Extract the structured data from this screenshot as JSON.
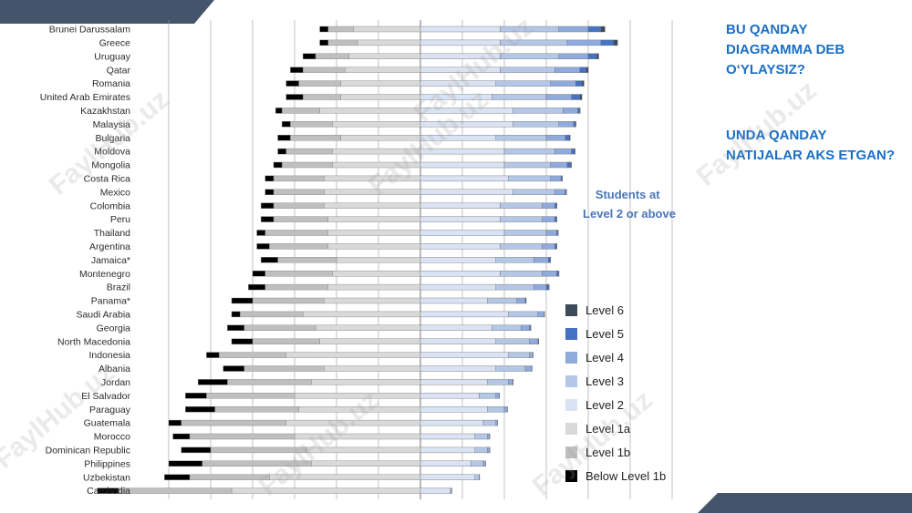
{
  "questions": {
    "q1": "BU QANDAY\nDIAGRAMMA DEB\nO‘YLAYSIZ?",
    "q2": " UNDA QANDAY\nNATIJALAR AKS ETGAN?"
  },
  "watermark": "FaylHub.uz",
  "colors": {
    "level6": "#3d4a5c",
    "level5": "#4472c4",
    "level4": "#8faadc",
    "level3": "#b4c7e7",
    "level2": "#dae3f3",
    "level1a": "#d9d9d9",
    "level1b": "#bfbfbf",
    "below1b": "#000000",
    "deco": "#44546a"
  },
  "chart_data": {
    "type": "bar",
    "orientation": "horizontal",
    "stacked": "diverging",
    "title": "",
    "callout": "Students at\nLevel 2 or above",
    "unit": "percent of students",
    "levels": [
      "Below Level 1b",
      "Level 1b",
      "Level 1a",
      "Level 2",
      "Level 3",
      "Level 4",
      "Level 5",
      "Level 6"
    ],
    "legend_order": [
      "Level 6",
      "Level 5",
      "Level 4",
      "Level 3",
      "Level 2",
      "Level 1a",
      "Level 1b",
      "Below Level 1b"
    ],
    "legend_position": "right",
    "grid": true,
    "xlim": [
      -60,
      80
    ],
    "categories": [
      "Brunei Darussalam",
      "Greece",
      "Uruguay",
      "Qatar",
      "Romania",
      "United Arab Emirates",
      "Kazakhstan",
      "Malaysia",
      "Bulgaria",
      "Moldova",
      "Mongolia",
      "Costa Rica",
      "Mexico",
      "Colombia",
      "Peru",
      "Thailand",
      "Argentina",
      "Jamaica*",
      "Montenegro",
      "Brazil",
      "Panama*",
      "Saudi Arabia",
      "Georgia",
      "North Macedonia",
      "Indonesia",
      "Albania",
      "Jordan",
      "El Salvador",
      "Paraguay",
      "Guatemala",
      "Morocco",
      "Dominican Republic",
      "Philippines",
      "Uzbekistan",
      "Cambodia"
    ],
    "values": [
      [
        2,
        6,
        16,
        19,
        14,
        7,
        3,
        1
      ],
      [
        2,
        7,
        15,
        19,
        16,
        8,
        3,
        1
      ],
      [
        3,
        8,
        17,
        19,
        14,
        7,
        2,
        0.5
      ],
      [
        3,
        10,
        18,
        19,
        13,
        6,
        1.5,
        0.5
      ],
      [
        3,
        10,
        19,
        18,
        13,
        6,
        1.5,
        0.5
      ],
      [
        4,
        9,
        19,
        17,
        13,
        6,
        2,
        0.5
      ],
      [
        1.5,
        9,
        24,
        22,
        12,
        3.5,
        0.5,
        0.1
      ],
      [
        2,
        10,
        21,
        22,
        11,
        3.5,
        0.5,
        0.1
      ],
      [
        3,
        12,
        19,
        18,
        12,
        4.5,
        1,
        0.2
      ],
      [
        2,
        11,
        21,
        20,
        12,
        4,
        0.8,
        0.1
      ],
      [
        2,
        12,
        21,
        20,
        11,
        4,
        0.8,
        0.2
      ],
      [
        2,
        12,
        23,
        21,
        10,
        2.5,
        0.3,
        0.05
      ],
      [
        2,
        12,
        23,
        22,
        10,
        2.5,
        0.3,
        0.05
      ],
      [
        3,
        12,
        23,
        19,
        10,
        3,
        0.5,
        0.05
      ],
      [
        3,
        13,
        22,
        19,
        10,
        3,
        0.5,
        0.05
      ],
      [
        2,
        15,
        22,
        20,
        10,
        2.5,
        0.3,
        0.05
      ],
      [
        3,
        14,
        22,
        19,
        10,
        3,
        0.5,
        0.05
      ],
      [
        4,
        14,
        20,
        18,
        9,
        3.5,
        0.5,
        0.05
      ],
      [
        3,
        16,
        21,
        19,
        10,
        3.5,
        0.5,
        0.05
      ],
      [
        4,
        15,
        22,
        18,
        9,
        3,
        0.6,
        0.1
      ],
      [
        5,
        17,
        23,
        16,
        7,
        2,
        0.2,
        0.02
      ],
      [
        2,
        15,
        28,
        21,
        7,
        1.5,
        0.1,
        0.01
      ],
      [
        4,
        17,
        25,
        17,
        7,
        2,
        0.3,
        0.02
      ],
      [
        5,
        16,
        24,
        18,
        8,
        2,
        0.2,
        0.02
      ],
      [
        3,
        16,
        32,
        21,
        5,
        0.8,
        0.05,
        0.01
      ],
      [
        5,
        19,
        23,
        18,
        7,
        1.5,
        0.1,
        0.01
      ],
      [
        7,
        20,
        26,
        16,
        5,
        1,
        0.1,
        0.01
      ],
      [
        5,
        21,
        30,
        14,
        4,
        0.8,
        0.05,
        0.01
      ],
      [
        7,
        20,
        29,
        16,
        4,
        0.7,
        0.05,
        0.01
      ],
      [
        3,
        25,
        32,
        15,
        3,
        0.4,
        0.02,
        0.01
      ],
      [
        4,
        25,
        30,
        13,
        3,
        0.5,
        0.02,
        0.01
      ],
      [
        7,
        23,
        27,
        13,
        3,
        0.5,
        0.03,
        0.01
      ],
      [
        8,
        26,
        26,
        12,
        3,
        0.5,
        0.03,
        0.01
      ],
      [
        6,
        19,
        36,
        13,
        1,
        0.1,
        0.01,
        0.0
      ],
      [
        5,
        27,
        45,
        7,
        0.5,
        0.05,
        0.0,
        0.0
      ]
    ]
  }
}
